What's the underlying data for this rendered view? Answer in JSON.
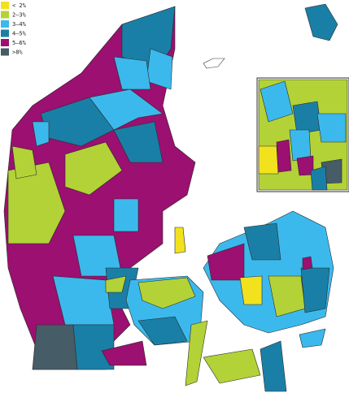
{
  "legend": {
    "items": [
      {
        "label": "< 2%",
        "color": "#f2e21d"
      },
      {
        "label": "2–3%",
        "color": "#b3d237"
      },
      {
        "label": "3–4%",
        "color": "#3cb9ec"
      },
      {
        "label": "4–5%",
        "color": "#1a7fa6"
      },
      {
        "label": "5–6%",
        "color": "#9b1070"
      },
      {
        "label": ">8%",
        "color": "#465c66"
      }
    ]
  }
}
